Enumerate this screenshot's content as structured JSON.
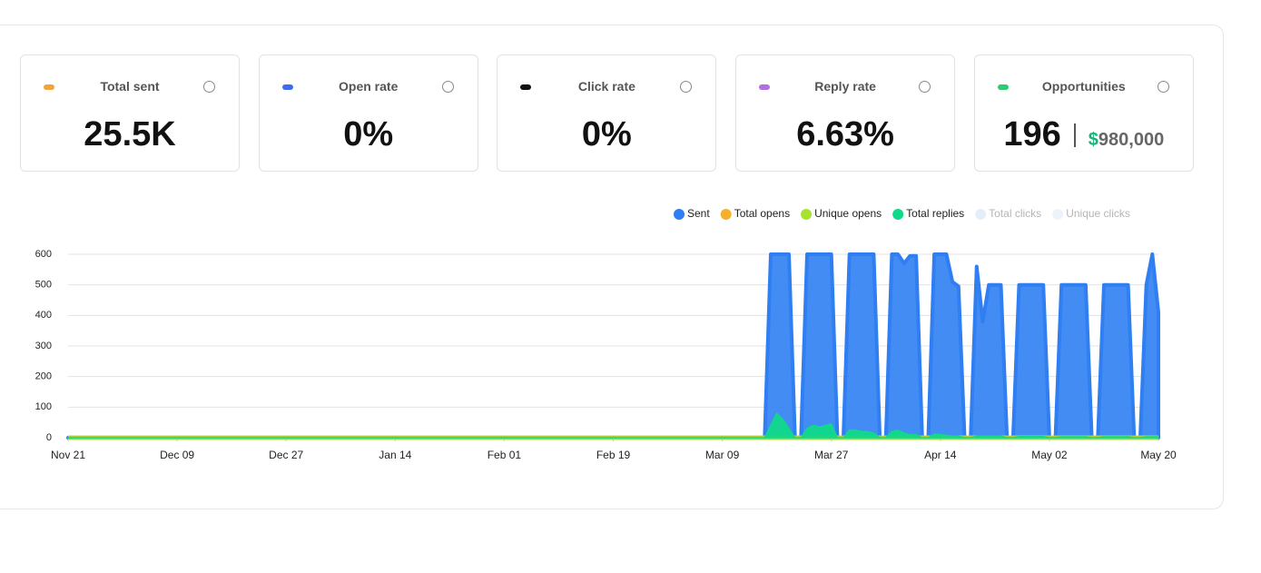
{
  "cards": [
    {
      "label": "Total sent",
      "value": "25.5K",
      "color": "#f0a53a"
    },
    {
      "label": "Open rate",
      "value": "0%",
      "color": "#3b6ff0"
    },
    {
      "label": "Click rate",
      "value": "0%",
      "color": "#111111"
    },
    {
      "label": "Reply rate",
      "value": "6.63%",
      "color": "#b36ee0"
    },
    {
      "label": "Opportunities",
      "value": "196",
      "color": "#2ecc71",
      "currency_symbol": "$",
      "amount": "980,000"
    }
  ],
  "chart_data": {
    "type": "area",
    "x": [
      0,
      115,
      116,
      117,
      118,
      119,
      120,
      121,
      122,
      123,
      124,
      125,
      126,
      127,
      128,
      129,
      130,
      131,
      132,
      133,
      134,
      135,
      136,
      137,
      138,
      139,
      140,
      141,
      142,
      143,
      144,
      145,
      146,
      147,
      148,
      149,
      150,
      151,
      152,
      153,
      154,
      155,
      156,
      157,
      158,
      159,
      160,
      161,
      162,
      163,
      164,
      165,
      166,
      167,
      168,
      169,
      170,
      171,
      172,
      173,
      174,
      175,
      176,
      177,
      178,
      179,
      180
    ],
    "series": [
      {
        "name": "Sent",
        "color": "#2f7ff2",
        "values": [
          0,
          0,
          600,
          600,
          600,
          600,
          0,
          0,
          600,
          600,
          600,
          600,
          600,
          0,
          0,
          600,
          600,
          600,
          600,
          600,
          0,
          0,
          600,
          600,
          570,
          595,
          595,
          0,
          0,
          600,
          600,
          600,
          510,
          495,
          0,
          0,
          560,
          380,
          500,
          500,
          500,
          0,
          0,
          500,
          500,
          500,
          500,
          500,
          0,
          0,
          500,
          500,
          500,
          500,
          500,
          0,
          0,
          500,
          500,
          500,
          500,
          500,
          0,
          0,
          500,
          600,
          410
        ]
      },
      {
        "name": "Total opens",
        "color": "#f5b12e",
        "values": [
          0,
          0,
          0,
          0,
          0,
          0,
          0,
          0,
          0,
          0,
          0,
          0,
          0,
          0,
          0,
          0,
          0,
          0,
          0,
          0,
          0,
          0,
          0,
          0,
          0,
          0,
          0,
          0,
          0,
          0,
          0,
          0,
          0,
          0,
          0,
          0,
          0,
          0,
          0,
          0,
          0,
          0,
          0,
          0,
          0,
          0,
          0,
          0,
          0,
          0,
          0,
          0,
          0,
          0,
          0,
          0,
          0,
          0,
          0,
          0,
          0,
          0,
          0,
          0,
          0,
          0,
          0
        ]
      },
      {
        "name": "Unique opens",
        "color": "#a6e22e",
        "values": [
          0,
          0,
          0,
          0,
          0,
          0,
          0,
          0,
          0,
          0,
          0,
          0,
          0,
          0,
          0,
          0,
          0,
          0,
          0,
          0,
          0,
          0,
          0,
          0,
          0,
          0,
          0,
          0,
          0,
          0,
          0,
          0,
          0,
          0,
          0,
          0,
          0,
          0,
          0,
          0,
          0,
          0,
          0,
          0,
          0,
          0,
          0,
          0,
          0,
          0,
          0,
          0,
          0,
          0,
          0,
          0,
          0,
          0,
          0,
          0,
          0,
          0,
          0,
          0,
          0,
          0,
          0
        ]
      },
      {
        "name": "Total replies",
        "color": "#10d98a",
        "values": [
          0,
          0,
          40,
          80,
          60,
          30,
          0,
          0,
          30,
          40,
          35,
          40,
          45,
          0,
          0,
          25,
          25,
          20,
          20,
          15,
          0,
          0,
          20,
          25,
          15,
          10,
          10,
          0,
          0,
          12,
          10,
          8,
          5,
          5,
          0,
          0,
          5,
          5,
          5,
          5,
          5,
          0,
          0,
          4,
          4,
          4,
          4,
          4,
          0,
          0,
          3,
          3,
          3,
          3,
          3,
          0,
          0,
          3,
          3,
          3,
          3,
          3,
          0,
          0,
          3,
          3,
          3
        ]
      }
    ],
    "hidden_series": [
      {
        "name": "Total clicks",
        "color": "#e4eef9"
      },
      {
        "name": "Unique clicks",
        "color": "#edf3fb"
      }
    ],
    "xlim": [
      0,
      180
    ],
    "xticks": [
      {
        "value": 0,
        "label": "Nov 21"
      },
      {
        "value": 18,
        "label": "Dec 09"
      },
      {
        "value": 36,
        "label": "Dec 27"
      },
      {
        "value": 54,
        "label": "Jan 14"
      },
      {
        "value": 72,
        "label": "Feb 01"
      },
      {
        "value": 90,
        "label": "Feb 19"
      },
      {
        "value": 108,
        "label": "Mar 09"
      },
      {
        "value": 126,
        "label": "Mar 27"
      },
      {
        "value": 144,
        "label": "Apr 14"
      },
      {
        "value": 162,
        "label": "May 02"
      },
      {
        "value": 180,
        "label": "May 20"
      }
    ],
    "ylim": [
      0,
      600
    ],
    "yticks": [
      0,
      100,
      200,
      300,
      400,
      500,
      600
    ],
    "grid": true
  }
}
